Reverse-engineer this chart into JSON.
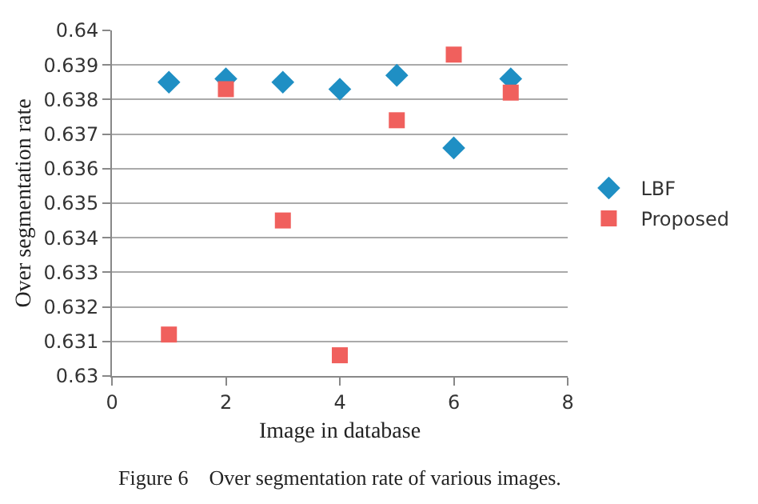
{
  "chart_data": {
    "type": "scatter",
    "xlabel": "Image in database",
    "ylabel": "Over segmentation rate",
    "x": [
      1,
      2,
      3,
      4,
      5,
      6,
      7
    ],
    "series": [
      {
        "name": "LBF",
        "color": "#1f8fc4",
        "marker": "diamond",
        "values": [
          0.6385,
          0.6386,
          0.6385,
          0.6383,
          0.6387,
          0.6366,
          0.6386
        ]
      },
      {
        "name": "Proposed",
        "color": "#f0605d",
        "marker": "square",
        "values": [
          0.6312,
          0.6383,
          0.6345,
          0.6306,
          0.6374,
          0.6393,
          0.6382
        ]
      }
    ],
    "xlim": [
      0,
      8
    ],
    "xticks": [
      0,
      2,
      4,
      6,
      8
    ],
    "ylim": [
      0.63,
      0.64
    ],
    "yticks": [
      0.63,
      0.631,
      0.632,
      0.633,
      0.634,
      0.635,
      0.636,
      0.637,
      0.638,
      0.639,
      0.64
    ],
    "grid": "y",
    "legend": "right",
    "annotations": [
      "Figure 6    Over segmentation rate of various images."
    ]
  }
}
